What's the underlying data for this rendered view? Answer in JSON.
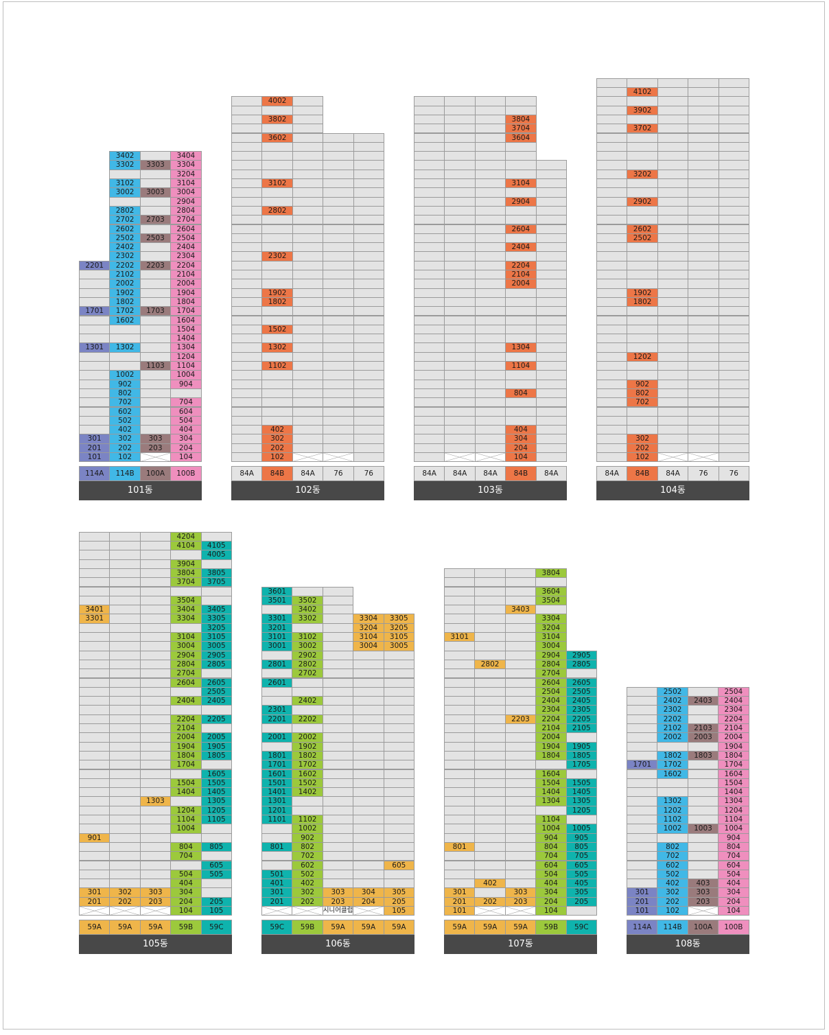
{
  "colors": {
    "grey": "#e3e3e3",
    "114A": "#7b84c4",
    "114B": "#41b8e6",
    "100A": "#9a7b7c",
    "100B": "#ef8fbe",
    "84B": "#ed7647",
    "59A": "#efb54a",
    "59B": "#9cc93c",
    "59C": "#0fb3ad"
  },
  "buildings": [
    {
      "name": "101동",
      "types": [
        "114A",
        "114B",
        "100A",
        "100B"
      ],
      "floors": 34,
      "columns": [
        {
          "type": "114A",
          "top": 22,
          "units": {
            "22": "2201",
            "17": "1701",
            "13": "1301",
            "3": "301",
            "2": "201",
            "1": "101"
          }
        },
        {
          "type": "114B",
          "top": 34,
          "units": {
            "34": "3402",
            "33": "3302",
            "31": "3102",
            "30": "3002",
            "28": "2802",
            "27": "2702",
            "26": "2602",
            "25": "2502",
            "24": "2402",
            "23": "2302",
            "22": "2202",
            "21": "2102",
            "20": "2002",
            "19": "1902",
            "18": "1802",
            "17": "1702",
            "16": "1602",
            "13": "1302",
            "10": "1002",
            "9": "902",
            "8": "802",
            "7": "702",
            "6": "602",
            "5": "502",
            "4": "402",
            "3": "302",
            "2": "202",
            "1": "102"
          }
        },
        {
          "type": "100A",
          "top": 34,
          "blank": [
            1
          ],
          "units": {
            "33": "3303",
            "30": "3003",
            "27": "2703",
            "25": "2503",
            "22": "2203",
            "17": "1703",
            "11": "1103",
            "3": "303",
            "2": "203"
          }
        },
        {
          "type": "100B",
          "top": 34,
          "units": {
            "34": "3404",
            "33": "3304",
            "32": "3204",
            "31": "3104",
            "30": "3004",
            "29": "2904",
            "28": "2804",
            "27": "2704",
            "26": "2604",
            "25": "2504",
            "24": "2404",
            "23": "2304",
            "22": "2204",
            "21": "2104",
            "20": "2004",
            "19": "1904",
            "18": "1804",
            "17": "1704",
            "16": "1604",
            "15": "1504",
            "14": "1404",
            "13": "1304",
            "12": "1204",
            "11": "1104",
            "10": "1004",
            "9": "904",
            "7": "704",
            "6": "604",
            "5": "504",
            "4": "404",
            "3": "304",
            "2": "204",
            "1": "104"
          }
        }
      ]
    },
    {
      "name": "102동",
      "types": [
        "84A",
        "84B",
        "84A",
        "76",
        "76"
      ],
      "floors": 40,
      "columns": [
        {
          "type": "84A",
          "top": 40,
          "units": {}
        },
        {
          "type": "84B",
          "top": 40,
          "units": {
            "40": "4002",
            "38": "3802",
            "36": "3602",
            "31": "3102",
            "28": "2802",
            "23": "2302",
            "19": "1902",
            "18": "1802",
            "15": "1502",
            "13": "1302",
            "11": "1102",
            "4": "402",
            "3": "302",
            "2": "202",
            "1": "102"
          }
        },
        {
          "type": "84A",
          "top": 40,
          "blank": [
            1
          ],
          "units": {}
        },
        {
          "type": "76",
          "top": 36,
          "blank": [
            1
          ],
          "units": {}
        },
        {
          "type": "76",
          "top": 36,
          "units": {}
        }
      ]
    },
    {
      "name": "103동",
      "types": [
        "84A",
        "84A",
        "84A",
        "84B",
        "84A"
      ],
      "floors": 40,
      "columns": [
        {
          "type": "84A",
          "top": 40,
          "units": {}
        },
        {
          "type": "84A",
          "top": 40,
          "blank": [
            1
          ],
          "units": {}
        },
        {
          "type": "84A",
          "top": 40,
          "blank": [
            1
          ],
          "units": {}
        },
        {
          "type": "84B",
          "top": 40,
          "units": {
            "38": "3804",
            "37": "3704",
            "36": "3604",
            "31": "3104",
            "29": "2904",
            "26": "2604",
            "24": "2404",
            "22": "2204",
            "21": "2104",
            "20": "2004",
            "13": "1304",
            "11": "1104",
            "8": "804",
            "4": "404",
            "3": "304",
            "2": "204",
            "1": "104"
          }
        },
        {
          "type": "84A",
          "top": 33,
          "units": {}
        }
      ]
    },
    {
      "name": "104동",
      "types": [
        "84A",
        "84B",
        "84A",
        "76",
        "76"
      ],
      "floors": 42,
      "columns": [
        {
          "type": "84A",
          "top": 42,
          "units": {}
        },
        {
          "type": "84B",
          "top": 42,
          "units": {
            "41": "4102",
            "39": "3902",
            "37": "3702",
            "32": "3202",
            "29": "2902",
            "26": "2602",
            "25": "2502",
            "19": "1902",
            "18": "1802",
            "12": "1202",
            "9": "902",
            "8": "802",
            "7": "702",
            "3": "302",
            "2": "202",
            "1": "102"
          }
        },
        {
          "type": "84A",
          "top": 42,
          "blank": [
            1
          ],
          "units": {}
        },
        {
          "type": "76",
          "top": 42,
          "blank": [
            1
          ],
          "units": {}
        },
        {
          "type": "76",
          "top": 42,
          "units": {}
        }
      ]
    },
    {
      "name": "105동",
      "types": [
        "59A",
        "59A",
        "59A",
        "59B",
        "59C"
      ],
      "floors": 42,
      "columns": [
        {
          "type": "59A",
          "top": 42,
          "blank": [
            1
          ],
          "units": {
            "34": "3401",
            "33": "3301",
            "9": "901",
            "3": "301",
            "2": "201"
          }
        },
        {
          "type": "59A",
          "top": 42,
          "blank": [
            1
          ],
          "units": {
            "3": "302",
            "2": "202"
          }
        },
        {
          "type": "59A",
          "top": 42,
          "blank": [
            1
          ],
          "units": {
            "13": "1303",
            "3": "303",
            "2": "203"
          }
        },
        {
          "type": "59B",
          "top": 42,
          "units": {
            "42": "4204",
            "41": "4104",
            "39": "3904",
            "38": "3804",
            "37": "3704",
            "35": "3504",
            "34": "3404",
            "33": "3304",
            "31": "3104",
            "30": "3004",
            "29": "2904",
            "28": "2804",
            "27": "2704",
            "26": "2604",
            "24": "2404",
            "22": "2204",
            "21": "2104",
            "20": "2004",
            "19": "1904",
            "18": "1804",
            "17": "1704",
            "15": "1504",
            "14": "1404",
            "12": "1204",
            "11": "1104",
            "10": "1004",
            "8": "804",
            "7": "704",
            "5": "504",
            "4": "404",
            "3": "304",
            "2": "204",
            "1": "104"
          }
        },
        {
          "type": "59C",
          "top": 42,
          "units": {
            "41": "4105",
            "40": "4005",
            "38": "3805",
            "37": "3705",
            "34": "3405",
            "33": "3305",
            "32": "3205",
            "31": "3105",
            "30": "3005",
            "29": "2905",
            "28": "2805",
            "26": "2605",
            "25": "2505",
            "24": "2405",
            "22": "2205",
            "20": "2005",
            "19": "1905",
            "18": "1805",
            "16": "1605",
            "15": "1505",
            "14": "1405",
            "13": "1305",
            "12": "1205",
            "11": "1105",
            "8": "805",
            "6": "605",
            "5": "505",
            "2": "205",
            "1": "105"
          }
        }
      ]
    },
    {
      "name": "106동",
      "types": [
        "59C",
        "59B",
        "59A",
        "59A",
        "59A"
      ],
      "floors": 36,
      "label_row": {
        "text": "시니어클럽",
        "col": 2
      },
      "columns": [
        {
          "type": "59C",
          "top": 36,
          "blank": [
            1
          ],
          "units": {
            "36": "3601",
            "35": "3501",
            "33": "3301",
            "32": "3201",
            "31": "3101",
            "30": "3001",
            "28": "2801",
            "26": "2601",
            "23": "2301",
            "22": "2201",
            "20": "2001",
            "18": "1801",
            "17": "1701",
            "16": "1601",
            "15": "1501",
            "14": "1401",
            "13": "1301",
            "12": "1201",
            "11": "1101",
            "8": "801",
            "5": "501",
            "4": "401",
            "3": "301",
            "2": "201"
          }
        },
        {
          "type": "59B",
          "top": 36,
          "blank": [
            1
          ],
          "units": {
            "35": "3502",
            "34": "3402",
            "33": "3302",
            "31": "3102",
            "30": "3002",
            "29": "2902",
            "28": "2802",
            "27": "2702",
            "24": "2402",
            "22": "2202",
            "20": "2002",
            "19": "1902",
            "18": "1802",
            "17": "1702",
            "16": "1602",
            "15": "1502",
            "14": "1402",
            "11": "1102",
            "10": "1002",
            "9": "902",
            "8": "802",
            "7": "702",
            "6": "602",
            "5": "502",
            "4": "402",
            "3": "302",
            "2": "202"
          }
        },
        {
          "type": "59A",
          "top": 36,
          "units": {
            "3": "303",
            "2": "203"
          }
        },
        {
          "type": "59A",
          "top": 33,
          "blank": [
            1
          ],
          "units": {
            "33": "3304",
            "32": "3204",
            "31": "3104",
            "30": "3004",
            "3": "304",
            "2": "204"
          }
        },
        {
          "type": "59A",
          "top": 33,
          "units": {
            "33": "3305",
            "32": "3205",
            "31": "3105",
            "30": "3005",
            "6": "605",
            "3": "305",
            "2": "205",
            "1": "105"
          }
        }
      ]
    },
    {
      "name": "107동",
      "types": [
        "59A",
        "59A",
        "59A",
        "59B",
        "59C"
      ],
      "floors": 38,
      "columns": [
        {
          "type": "59A",
          "top": 38,
          "units": {
            "31": "3101",
            "8": "801",
            "3": "301",
            "2": "201",
            "1": "101"
          }
        },
        {
          "type": "59A",
          "top": 38,
          "blank": [
            1
          ],
          "units": {
            "28": "2802",
            "4": "402",
            "2": "202"
          }
        },
        {
          "type": "59A",
          "top": 38,
          "blank": [
            1
          ],
          "units": {
            "34": "3403",
            "22": "2203",
            "3": "303",
            "2": "203"
          }
        },
        {
          "type": "59B",
          "top": 38,
          "units": {
            "38": "3804",
            "36": "3604",
            "35": "3504",
            "33": "3304",
            "32": "3204",
            "31": "3104",
            "30": "3004",
            "29": "2904",
            "28": "2804",
            "27": "2704",
            "26": "2604",
            "25": "2504",
            "24": "2404",
            "23": "2304",
            "22": "2204",
            "21": "2104",
            "20": "2004",
            "19": "1904",
            "18": "1804",
            "16": "1604",
            "15": "1504",
            "14": "1404",
            "13": "1304",
            "11": "1104",
            "10": "1004",
            "9": "904",
            "8": "804",
            "7": "704",
            "6": "604",
            "5": "504",
            "4": "404",
            "3": "304",
            "2": "204",
            "1": "104"
          }
        },
        {
          "type": "59C",
          "top": 29,
          "units": {
            "29": "2905",
            "28": "2805",
            "26": "2605",
            "25": "2505",
            "24": "2405",
            "23": "2305",
            "22": "2205",
            "21": "2105",
            "19": "1905",
            "18": "1805",
            "17": "1705",
            "15": "1505",
            "14": "1405",
            "13": "1305",
            "12": "1205",
            "10": "1005",
            "9": "905",
            "8": "805",
            "7": "705",
            "6": "605",
            "5": "505",
            "4": "405",
            "3": "305",
            "2": "205"
          }
        }
      ]
    },
    {
      "name": "108동",
      "types": [
        "114A",
        "114B",
        "100A",
        "100B"
      ],
      "floors": 25,
      "columns": [
        {
          "type": "114A",
          "top": 25,
          "units": {
            "17": "1701",
            "3": "301",
            "2": "201",
            "1": "101"
          }
        },
        {
          "type": "114B",
          "top": 25,
          "units": {
            "25": "2502",
            "24": "2402",
            "23": "2302",
            "22": "2202",
            "21": "2102",
            "20": "2002",
            "18": "1802",
            "17": "1702",
            "16": "1602",
            "13": "1302",
            "12": "1202",
            "11": "1102",
            "10": "1002",
            "8": "802",
            "7": "702",
            "6": "602",
            "5": "502",
            "4": "402",
            "3": "302",
            "2": "202",
            "1": "102"
          }
        },
        {
          "type": "100A",
          "top": 25,
          "blank": [
            1
          ],
          "units": {
            "24": "2403",
            "21": "2103",
            "20": "2003",
            "18": "1803",
            "10": "1003",
            "4": "403",
            "3": "303",
            "2": "203"
          }
        },
        {
          "type": "100B",
          "top": 25,
          "units": {
            "25": "2504",
            "24": "2404",
            "23": "2304",
            "22": "2204",
            "21": "2104",
            "20": "2004",
            "19": "1904",
            "18": "1804",
            "17": "1704",
            "16": "1604",
            "15": "1504",
            "14": "1404",
            "13": "1304",
            "12": "1204",
            "11": "1104",
            "10": "1004",
            "9": "904",
            "8": "804",
            "7": "704",
            "6": "604",
            "5": "504",
            "4": "404",
            "3": "304",
            "2": "204",
            "1": "104"
          }
        }
      ]
    }
  ]
}
